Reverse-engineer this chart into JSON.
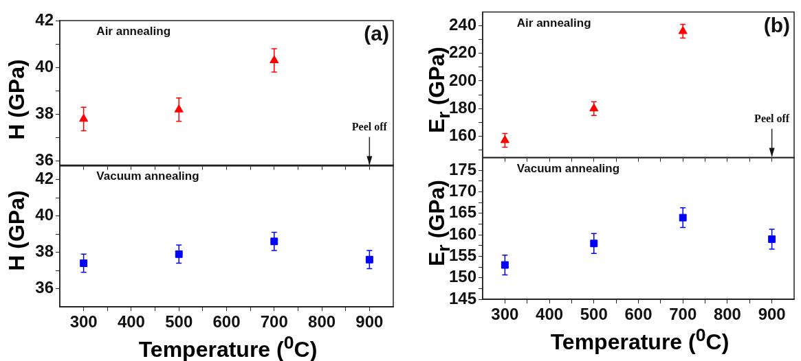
{
  "chart_data": [
    {
      "type": "scatter",
      "ylabel": "H (GPa)",
      "x": [
        300,
        500,
        700
      ],
      "marker": "triangle",
      "tick_labels": "y",
      "xlim": [
        250,
        950
      ],
      "xticks": [
        300,
        {
          "value": 350,
          "label": null
        },
        400,
        {
          "value": 450,
          "label": null
        },
        500,
        {
          "value": 550,
          "label": null
        },
        600,
        {
          "value": 650,
          "label": null
        },
        700,
        {
          "value": 750,
          "label": null
        },
        800,
        {
          "value": 850,
          "label": null
        },
        900
      ],
      "ylim": [
        35.8,
        42
      ],
      "yticks": [
        36,
        {
          "value": 37,
          "label": null
        },
        38,
        {
          "value": 39,
          "label": null
        },
        40,
        {
          "value": 41,
          "label": null
        },
        42
      ],
      "series": [
        {
          "color": "#ff0000",
          "values": [
            37.8,
            38.2,
            40.3
          ],
          "errors": [
            0.5,
            0.5,
            0.5
          ]
        }
      ],
      "annotations": [
        "Air annealing",
        "(a)",
        "Peel off"
      ]
    },
    {
      "type": "scatter",
      "ylabel": "H (GPa)",
      "xlabel": "Temperature ($^{0}$C)",
      "x": [
        300,
        500,
        700,
        900
      ],
      "marker": "square",
      "xlim": [
        250,
        950
      ],
      "xticks": [
        300,
        {
          "value": 350,
          "label": null
        },
        400,
        {
          "value": 450,
          "label": null
        },
        500,
        {
          "value": 550,
          "label": null
        },
        600,
        {
          "value": 650,
          "label": null
        },
        700,
        {
          "value": 750,
          "label": null
        },
        800,
        {
          "value": 850,
          "label": null
        },
        900
      ],
      "ylim": [
        35,
        42.8
      ],
      "yticks": [
        36,
        {
          "value": 37,
          "label": null
        },
        38,
        {
          "value": 39,
          "label": null
        },
        40,
        {
          "value": 41,
          "label": null
        },
        42
      ],
      "series": [
        {
          "color": "#0000ff",
          "values": [
            37.4,
            37.9,
            38.6,
            37.6
          ],
          "errors": [
            0.5,
            0.5,
            0.5,
            0.5
          ]
        }
      ],
      "annotations": [
        "Vacuum annealing"
      ]
    },
    {
      "type": "scatter",
      "ylabel": "E$_{r}$ (GPa)",
      "x": [
        300,
        500,
        700
      ],
      "marker": "triangle",
      "tick_labels": "y",
      "xlim": [
        250,
        950
      ],
      "xticks": [
        300,
        {
          "value": 350,
          "label": null
        },
        400,
        {
          "value": 450,
          "label": null
        },
        500,
        {
          "value": 550,
          "label": null
        },
        600,
        {
          "value": 650,
          "label": null
        },
        700,
        {
          "value": 750,
          "label": null
        },
        800,
        {
          "value": 850,
          "label": null
        },
        900
      ],
      "ylim": [
        144.5,
        250
      ],
      "yticks": [
        {
          "value": 150,
          "label": null
        },
        160,
        {
          "value": 170,
          "label": null
        },
        180,
        {
          "value": 190,
          "label": null
        },
        200,
        {
          "value": 210,
          "label": null
        },
        220,
        {
          "value": 230,
          "label": null
        },
        240
      ],
      "series": [
        {
          "color": "#ff0000",
          "values": [
            157,
            180,
            236
          ],
          "errors": [
            5,
            5,
            5
          ]
        }
      ],
      "annotations": [
        "Air annealing",
        "(b)",
        "Peel off"
      ]
    },
    {
      "type": "scatter",
      "ylabel": "E$_{r}$ (GPa)",
      "xlabel": "Temperature ($^{0}$C)",
      "x": [
        300,
        500,
        700,
        900
      ],
      "marker": "square",
      "xlim": [
        250,
        950
      ],
      "xticks": [
        300,
        {
          "value": 350,
          "label": null
        },
        400,
        {
          "value": 450,
          "label": null
        },
        500,
        {
          "value": 550,
          "label": null
        },
        600,
        {
          "value": 650,
          "label": null
        },
        700,
        {
          "value": 750,
          "label": null
        },
        800,
        {
          "value": 850,
          "label": null
        },
        900
      ],
      "ylim": [
        145,
        178
      ],
      "yticks": [
        145,
        {
          "value": 147.5,
          "label": null
        },
        150,
        {
          "value": 152.5,
          "label": null
        },
        155,
        {
          "value": 157.5,
          "label": null
        },
        160,
        {
          "value": 162.5,
          "label": null
        },
        165,
        {
          "value": 167.5,
          "label": null
        },
        170,
        {
          "value": 172.5,
          "label": null
        },
        175
      ],
      "series": [
        {
          "color": "#0000ff",
          "values": [
            153,
            158,
            164,
            159
          ],
          "errors": [
            2.3,
            2.3,
            2.3,
            2.3
          ]
        }
      ],
      "annotations": [
        "Vacuum annealing"
      ]
    }
  ]
}
